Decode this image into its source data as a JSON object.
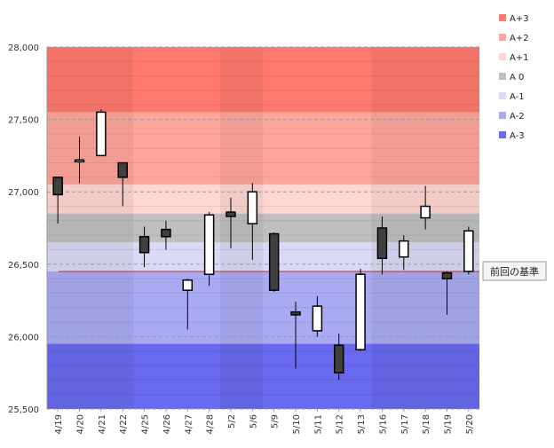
{
  "chart_data": {
    "type": "candlestick",
    "title": "",
    "xlabel": "",
    "ylabel": "",
    "ylim": [
      25500,
      28000
    ],
    "y_ticks": [
      {
        "value": 25500,
        "label": "25,500"
      },
      {
        "value": 26000,
        "label": "26,000"
      },
      {
        "value": 26500,
        "label": "26,500"
      },
      {
        "value": 27000,
        "label": "27,000"
      },
      {
        "value": 27500,
        "label": "27,500"
      },
      {
        "value": 28000,
        "label": "28,000"
      }
    ],
    "categories": [
      "4/19",
      "4/20",
      "4/21",
      "4/22",
      "4/25",
      "4/26",
      "4/27",
      "4/28",
      "5/2",
      "5/6",
      "5/9",
      "5/10",
      "5/11",
      "5/12",
      "5/13",
      "5/16",
      "5/17",
      "5/18",
      "5/19",
      "5/20"
    ],
    "candles": [
      {
        "open": 27100,
        "high": 27100,
        "low": 26780,
        "close": 26980
      },
      {
        "open": 27210,
        "high": 27380,
        "low": 27060,
        "close": 27220
      },
      {
        "open": 27250,
        "high": 27570,
        "low": 27250,
        "close": 27550
      },
      {
        "open": 27200,
        "high": 27200,
        "low": 26900,
        "close": 27100
      },
      {
        "open": 26690,
        "high": 26760,
        "low": 26480,
        "close": 26580
      },
      {
        "open": 26740,
        "high": 26800,
        "low": 26600,
        "close": 26690
      },
      {
        "open": 26320,
        "high": 26400,
        "low": 26050,
        "close": 26390
      },
      {
        "open": 26430,
        "high": 26860,
        "low": 26350,
        "close": 26840
      },
      {
        "open": 26860,
        "high": 26960,
        "low": 26610,
        "close": 26830
      },
      {
        "open": 26780,
        "high": 27060,
        "low": 26530,
        "close": 27000
      },
      {
        "open": 26710,
        "high": 26720,
        "low": 26310,
        "close": 26320
      },
      {
        "open": 26170,
        "high": 26240,
        "low": 25780,
        "close": 26150
      },
      {
        "open": 26040,
        "high": 26280,
        "low": 26000,
        "close": 26210
      },
      {
        "open": 25940,
        "high": 26020,
        "low": 25700,
        "close": 25750
      },
      {
        "open": 25910,
        "high": 26470,
        "low": 25900,
        "close": 26430
      },
      {
        "open": 26750,
        "high": 26830,
        "low": 26430,
        "close": 26540
      },
      {
        "open": 26550,
        "high": 26700,
        "low": 26460,
        "close": 26660
      },
      {
        "open": 26820,
        "high": 27040,
        "low": 26740,
        "close": 26900
      },
      {
        "open": 26440,
        "high": 26450,
        "low": 26150,
        "close": 26400
      },
      {
        "open": 26450,
        "high": 26760,
        "low": 26430,
        "close": 26730
      }
    ],
    "bands": [
      {
        "name": "A+3",
        "from": 27550,
        "to": 28000,
        "color": "#ff7a6e"
      },
      {
        "name": "A+2",
        "from": 27050,
        "to": 27550,
        "color": "#ffa69c"
      },
      {
        "name": "A+1",
        "from": 26850,
        "to": 27050,
        "color": "#ffd6d2"
      },
      {
        "name": "A 0",
        "from": 26650,
        "to": 26850,
        "color": "#bfbfbf"
      },
      {
        "name": "A-1",
        "from": 26450,
        "to": 26650,
        "color": "#dadaf6"
      },
      {
        "name": "A-2",
        "from": 25950,
        "to": 26450,
        "color": "#aaaaf2"
      },
      {
        "name": "A-3",
        "from": 25500,
        "to": 25950,
        "color": "#6a6af0"
      }
    ],
    "legend": [
      {
        "label": "A+3",
        "color": "#ff7a6e"
      },
      {
        "label": "A+2",
        "color": "#ffa69c"
      },
      {
        "label": "A+1",
        "color": "#ffd6d2"
      },
      {
        "label": "A 0",
        "color": "#bfbfbf"
      },
      {
        "label": "A-1",
        "color": "#dadaf6"
      },
      {
        "label": "A-2",
        "color": "#aaaaf2"
      },
      {
        "label": "A-3",
        "color": "#6a6af0"
      }
    ],
    "legend_position": "right",
    "reference_line": {
      "value": 26450,
      "label": "前回の基準",
      "color": "#c0302a"
    },
    "week_shading_groups": [
      [
        0,
        3
      ],
      [
        8,
        9
      ],
      [
        15,
        19
      ]
    ],
    "colors": {
      "up_fill": "#ffffff",
      "down_fill": "#404040",
      "outline": "#000000",
      "grid": "#9a9a9a"
    }
  }
}
